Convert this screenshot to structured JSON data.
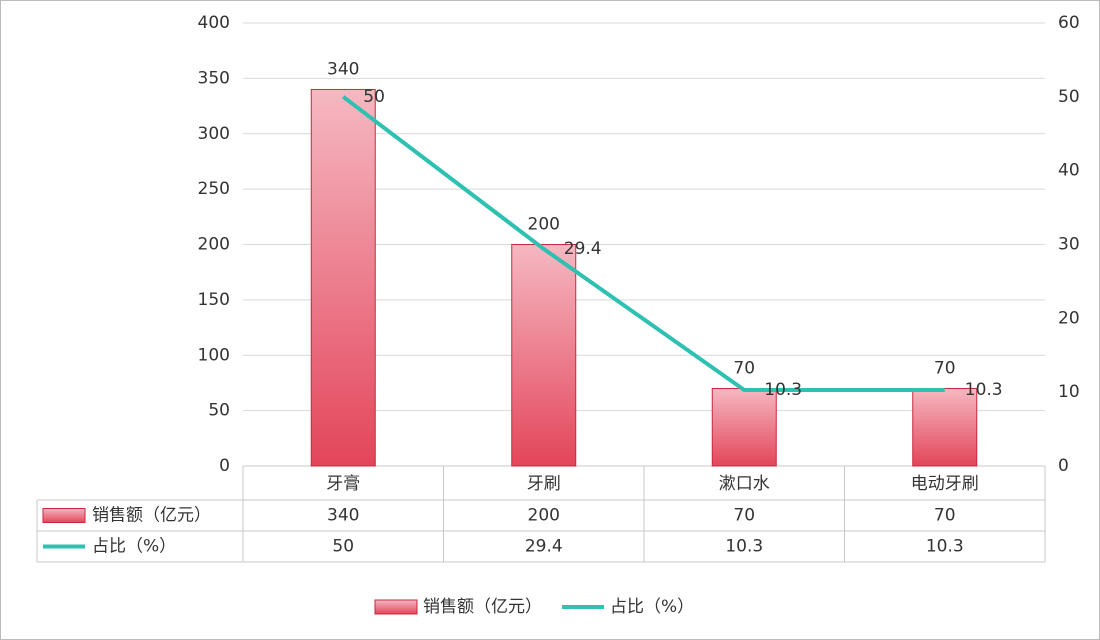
{
  "chart_data": {
    "type": "bar-line",
    "categories": [
      "牙膏",
      "牙刷",
      "漱口水",
      "电动牙刷"
    ],
    "series": [
      {
        "name": "销售额（亿元）",
        "type": "bar",
        "color": "#e3455a",
        "values": [
          340,
          200,
          70,
          70
        ]
      },
      {
        "name": "占比（%）",
        "type": "line",
        "axis": "y2",
        "color": "#2ec0b0",
        "values": [
          50,
          29.4,
          10.3,
          10.3
        ]
      }
    ],
    "ylim": [
      0,
      400
    ],
    "yticks": [
      0,
      50,
      100,
      150,
      200,
      250,
      300,
      350,
      400
    ],
    "y2lim": [
      0,
      60
    ],
    "y2ticks": [
      0,
      10,
      20,
      30,
      40,
      50,
      60
    ],
    "grid": true,
    "data_table": true,
    "legend": "bottom"
  }
}
